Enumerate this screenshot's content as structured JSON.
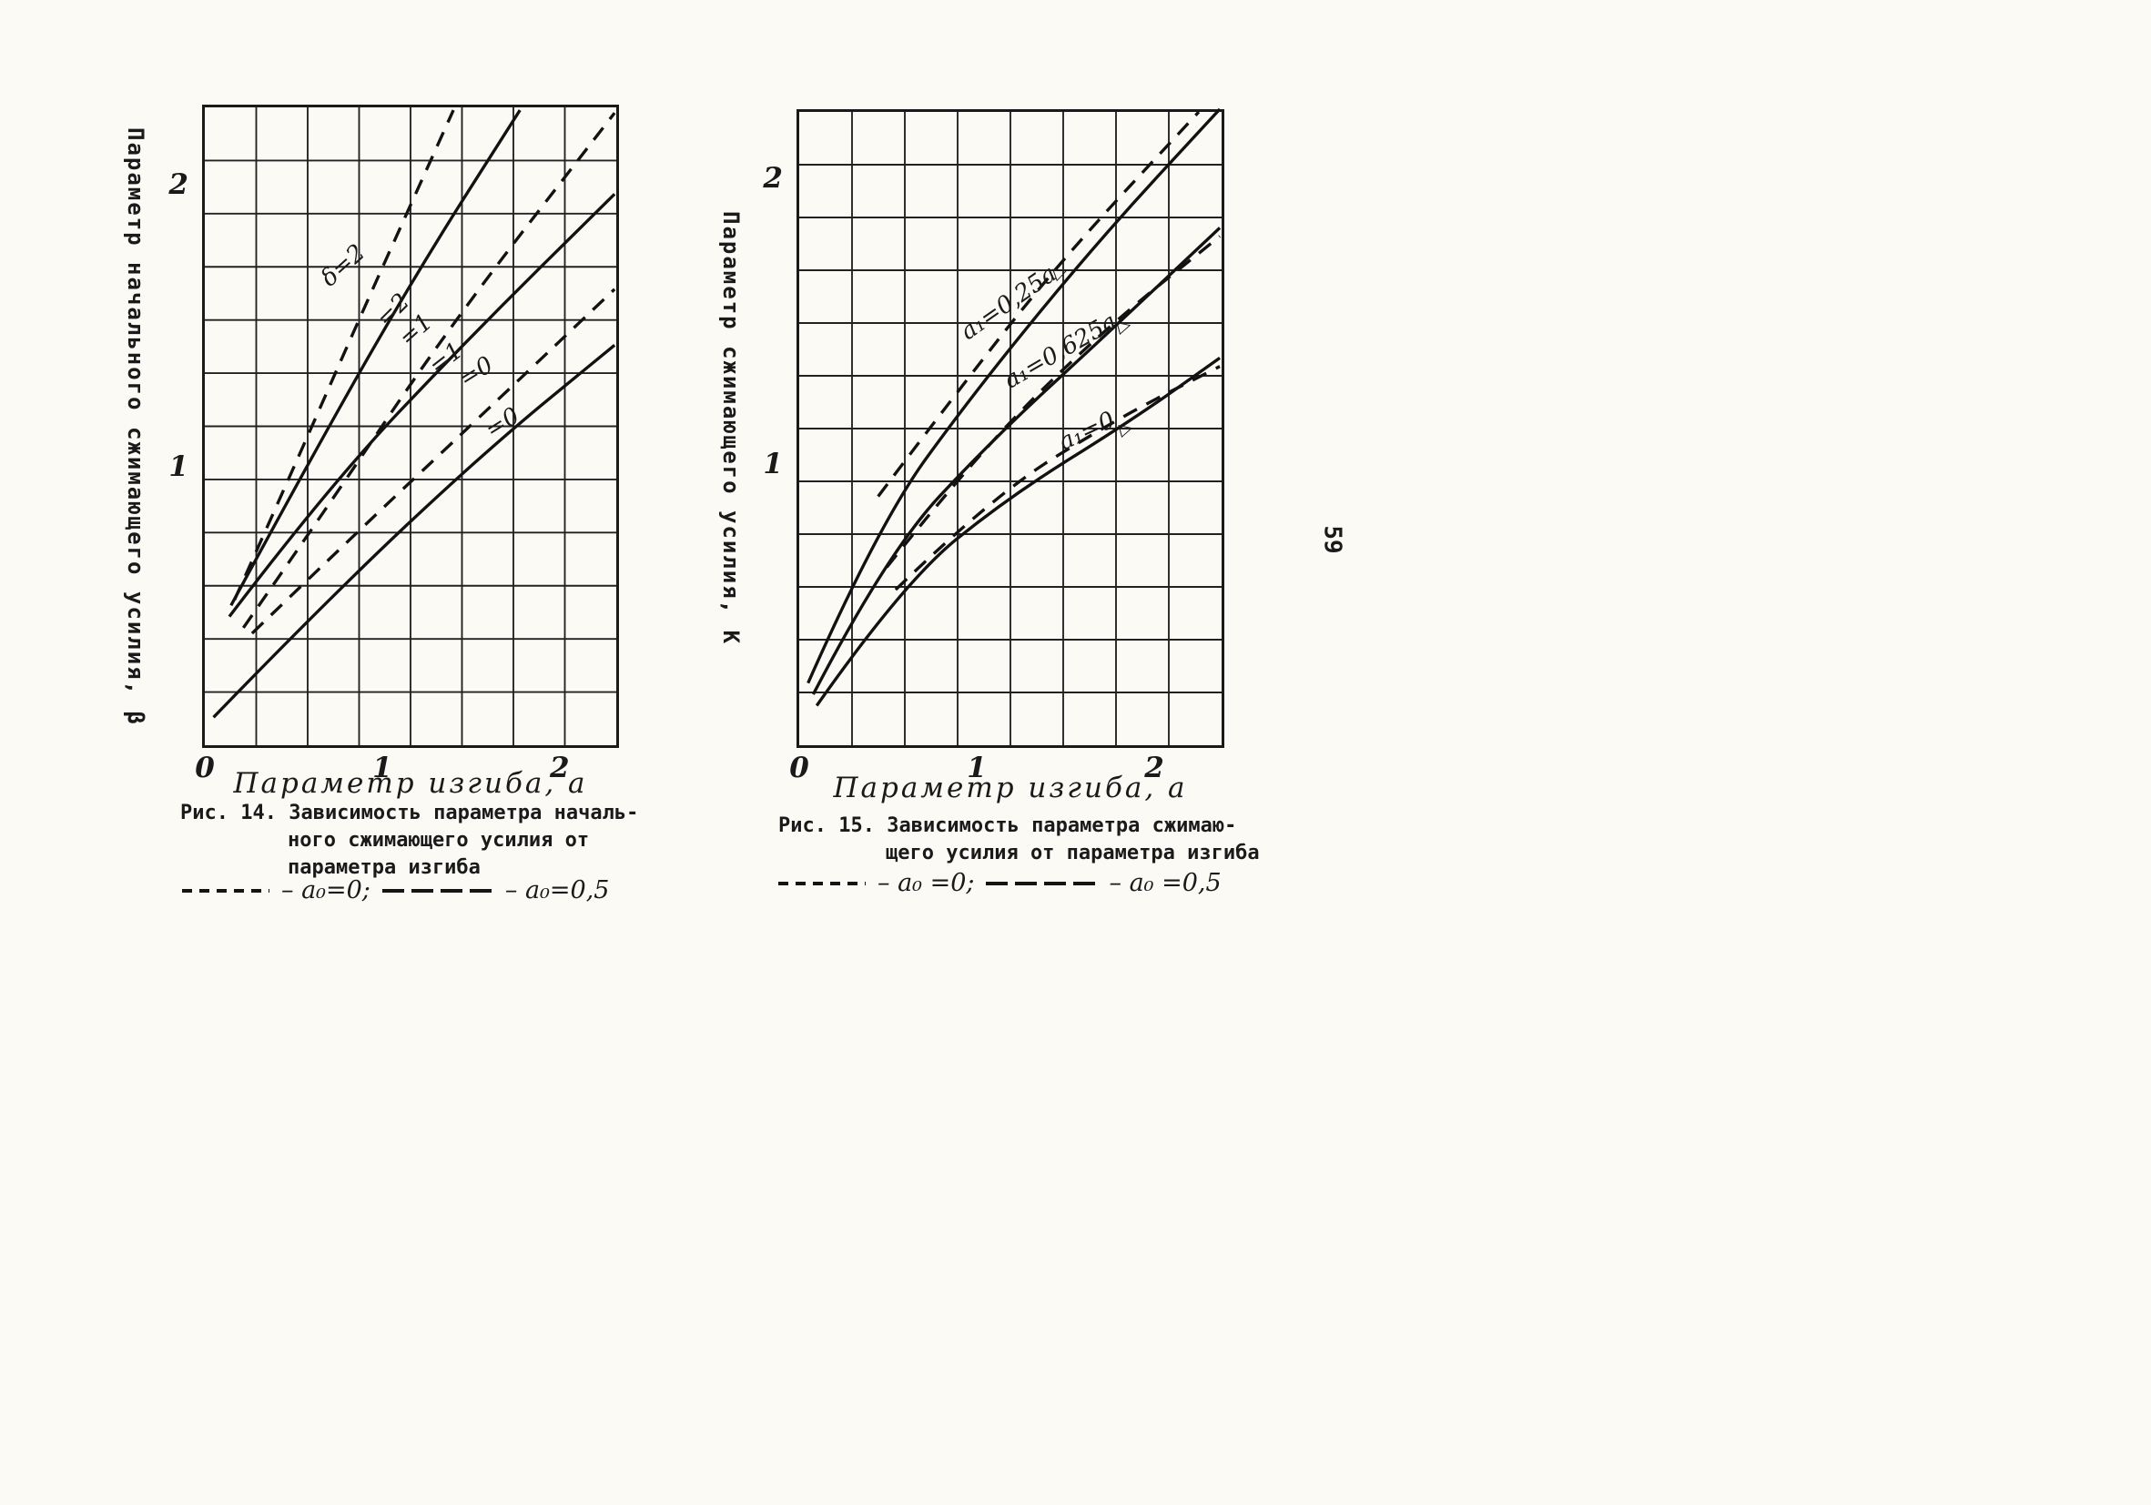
{
  "page": {
    "number": "59",
    "paper_color": "#fbfaf5",
    "ink_color": "#1a1a1a"
  },
  "chart_data": [
    {
      "type": "line",
      "figure": "Рис. 14",
      "caption_lines": [
        "Рис. 14. Зависимость параметра началь-",
        "ного сжимающего усилия от",
        "параметра изгиба"
      ],
      "xlabel": "Параметр изгиба, a",
      "ylabel": "Параметр начального сжимающего усилия, β",
      "xlim": [
        0,
        2.35
      ],
      "ylim": [
        0,
        2.28
      ],
      "grid": {
        "cols": 8,
        "rows": 12,
        "on": true
      },
      "x_ticks": [
        {
          "v": 0,
          "label": "0"
        },
        {
          "v": 1,
          "label": "1"
        },
        {
          "v": 2,
          "label": "2"
        }
      ],
      "y_ticks": [
        {
          "v": 1,
          "label": "1"
        },
        {
          "v": 2,
          "label": "2"
        }
      ],
      "legend_position": "below-caption",
      "legend": [
        {
          "style": "dashed",
          "label": "– a₀=0;"
        },
        {
          "style": "solid",
          "label": "– a₀=0,5"
        }
      ],
      "series": [
        {
          "name": "a₀=0, δ=2",
          "style": "dashed",
          "points": [
            [
              0.17,
              0.52
            ],
            [
              0.5,
              0.98
            ],
            [
              0.9,
              1.55
            ],
            [
              1.42,
              2.27
            ]
          ]
        },
        {
          "name": "a₀=0,5, δ=2",
          "style": "solid",
          "points": [
            [
              0.15,
              0.5
            ],
            [
              0.6,
              1.02
            ],
            [
              1.2,
              1.68
            ],
            [
              1.8,
              2.27
            ]
          ]
        },
        {
          "name": "a₀=0, δ=1",
          "style": "dashed",
          "points": [
            [
              0.22,
              0.42
            ],
            [
              0.7,
              0.85
            ],
            [
              1.4,
              1.5
            ],
            [
              2.34,
              2.26
            ]
          ]
        },
        {
          "name": "a₀=0,5, δ=1",
          "style": "solid",
          "points": [
            [
              0.14,
              0.46
            ],
            [
              0.7,
              0.92
            ],
            [
              1.5,
              1.45
            ],
            [
              2.34,
              1.97
            ]
          ]
        },
        {
          "name": "a₀=0, δ=0",
          "style": "dashed",
          "points": [
            [
              0.27,
              0.4
            ],
            [
              0.9,
              0.78
            ],
            [
              1.7,
              1.25
            ],
            [
              2.34,
              1.63
            ]
          ]
        },
        {
          "name": "a₀=0,5, δ=0",
          "style": "solid",
          "points": [
            [
              0.05,
              0.1
            ],
            [
              0.7,
              0.52
            ],
            [
              1.6,
              1.05
            ],
            [
              2.34,
              1.43
            ]
          ]
        }
      ],
      "labels": [
        {
          "text": "δ=2",
          "x": 0.78,
          "y": 1.72,
          "rot": -42
        },
        {
          "text": "=2",
          "x": 1.06,
          "y": 1.56,
          "rot": -45
        },
        {
          "text": "=1",
          "x": 1.19,
          "y": 1.49,
          "rot": -42
        },
        {
          "text": "=1",
          "x": 1.36,
          "y": 1.39,
          "rot": -38
        },
        {
          "text": "=0",
          "x": 1.53,
          "y": 1.34,
          "rot": -32
        },
        {
          "text": "=0",
          "x": 1.68,
          "y": 1.16,
          "rot": -32
        }
      ]
    },
    {
      "type": "line",
      "figure": "Рис. 15",
      "caption_lines": [
        "Рис. 15. Зависимость параметра сжимаю-",
        "щего усилия от параметра изгиба"
      ],
      "xlabel": "Параметр изгиба, a",
      "ylabel": "Параметр сжимающего усилия, К",
      "xlim": [
        0,
        2.41
      ],
      "ylim": [
        0,
        2.24
      ],
      "grid": {
        "cols": 8,
        "rows": 12,
        "on": true
      },
      "x_ticks": [
        {
          "v": 0,
          "label": "0"
        },
        {
          "v": 1,
          "label": "1"
        },
        {
          "v": 2,
          "label": "2"
        }
      ],
      "y_ticks": [
        {
          "v": 1,
          "label": "1"
        },
        {
          "v": 2,
          "label": "2"
        }
      ],
      "legend_position": "below-caption",
      "legend": [
        {
          "style": "dashed",
          "label": "– a₀ =0;"
        },
        {
          "style": "solid",
          "label": "– a₀ =0,5"
        }
      ],
      "series": [
        {
          "name": "a₀=0, a₁=0,25a",
          "style": "dashed",
          "points": [
            [
              0.45,
              0.88
            ],
            [
              0.9,
              1.25
            ],
            [
              1.5,
              1.72
            ],
            [
              2.28,
              2.24
            ]
          ]
        },
        {
          "name": "a₀=0,5, a₁=0,25a",
          "style": "solid",
          "points": [
            [
              0.05,
              0.22
            ],
            [
              0.45,
              0.78
            ],
            [
              1.0,
              1.25
            ],
            [
              1.7,
              1.78
            ],
            [
              2.4,
              2.25
            ]
          ]
        },
        {
          "name": "a₀=0, a₁=0,625a",
          "style": "dashed",
          "points": [
            [
              0.5,
              0.63
            ],
            [
              1.0,
              1.02
            ],
            [
              1.7,
              1.45
            ],
            [
              2.4,
              1.8
            ]
          ]
        },
        {
          "name": "a₀=0,5, a₁=0,625a",
          "style": "solid",
          "points": [
            [
              0.08,
              0.18
            ],
            [
              0.5,
              0.68
            ],
            [
              1.1,
              1.08
            ],
            [
              1.8,
              1.48
            ],
            [
              2.4,
              1.83
            ]
          ]
        },
        {
          "name": "a₀=0, a₁=0",
          "style": "dashed",
          "points": [
            [
              0.55,
              0.55
            ],
            [
              1.1,
              0.88
            ],
            [
              1.8,
              1.15
            ],
            [
              2.4,
              1.34
            ]
          ]
        },
        {
          "name": "a₀=0,5, a₁=0",
          "style": "solid",
          "points": [
            [
              0.1,
              0.14
            ],
            [
              0.6,
              0.58
            ],
            [
              1.2,
              0.88
            ],
            [
              1.9,
              1.15
            ],
            [
              2.4,
              1.37
            ]
          ]
        }
      ],
      "labels": [
        {
          "text": "a₁=0,25a",
          "x": 1.18,
          "y": 1.57,
          "rot": -35
        },
        {
          "text": "a₁=0,625a",
          "x": 1.47,
          "y": 1.4,
          "rot": -30
        },
        {
          "text": "a₁=0",
          "x": 1.62,
          "y": 1.12,
          "rot": -25
        },
        {
          "text": "▷",
          "kind": "marker",
          "x": 1.47,
          "y": 1.68,
          "rot": -20
        },
        {
          "text": "▷",
          "kind": "marker",
          "x": 1.83,
          "y": 1.49,
          "rot": -15
        },
        {
          "text": "▷",
          "kind": "marker",
          "x": 1.84,
          "y": 1.13,
          "rot": -15
        }
      ]
    }
  ]
}
